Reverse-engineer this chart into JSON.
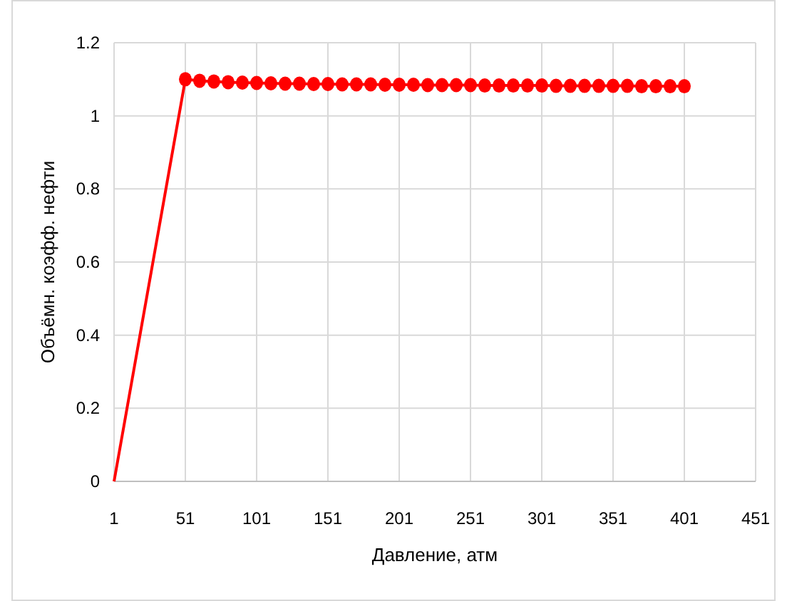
{
  "chart_data": {
    "type": "line",
    "xlabel": "Давление, атм",
    "ylabel": "Объёмн. коэфф. нефти",
    "xlim": [
      1,
      451
    ],
    "xticks": [
      1,
      51,
      101,
      151,
      201,
      251,
      301,
      351,
      401,
      451
    ],
    "ylim": [
      0,
      1.2
    ],
    "yticks": [
      0,
      0.2,
      0.4,
      0.6,
      0.8,
      1,
      1.2
    ],
    "grid": true,
    "series": [
      {
        "color": "#ff0000",
        "x": [
          1,
          51
        ],
        "values": [
          0,
          1.1
        ]
      },
      {
        "color": "#ff0000",
        "marker": "circle",
        "x": [
          51,
          61,
          71,
          81,
          91,
          101,
          111,
          121,
          131,
          141,
          151,
          161,
          171,
          181,
          191,
          201,
          211,
          221,
          231,
          241,
          251,
          261,
          271,
          281,
          291,
          301,
          311,
          321,
          331,
          341,
          351,
          361,
          371,
          381,
          391,
          401
        ],
        "values": [
          1.1,
          1.096,
          1.094,
          1.092,
          1.091,
          1.09,
          1.089,
          1.088,
          1.088,
          1.087,
          1.087,
          1.086,
          1.086,
          1.086,
          1.085,
          1.085,
          1.085,
          1.084,
          1.084,
          1.084,
          1.084,
          1.083,
          1.083,
          1.083,
          1.083,
          1.083,
          1.082,
          1.082,
          1.082,
          1.082,
          1.082,
          1.082,
          1.081,
          1.081,
          1.081,
          1.081
        ]
      }
    ]
  }
}
